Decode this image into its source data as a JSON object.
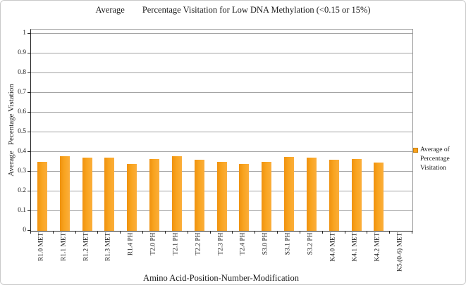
{
  "figure": {
    "title": "Average        Percentage Visitation for Low DNA Methylation (<0.15 or 15%)",
    "x_axis_title": "Amino Acid-Position-Number-Modification",
    "y_axis_title": "Average   Pecentage Vistation"
  },
  "legend": {
    "lines": [
      "Average of",
      "Percentage",
      "Visitation"
    ],
    "swatch_color": "#F9A01B"
  },
  "chart_data": {
    "type": "bar",
    "title": "Average Percentage Visitation for Low DNA Methylation (<0.15 or 15%)",
    "xlabel": "Amino Acid-Position-Number-Modification",
    "ylabel": "Average Pecentage Vistation",
    "categories": [
      "R1.0 MET",
      "R1.1 MET",
      "R1.2 MET",
      "R1.3 MET",
      "R1.4 PH",
      "T2.0 PH",
      "T2.1 PH",
      "T2.2 PH",
      "T2.3 PH",
      "T2.4 PH",
      "S3.0 PH",
      "S3.1 PH",
      "S3.2 PH",
      "K4.0 MET",
      "K4.1 MET",
      "K4.2 MET",
      "K5.(0-6) MET"
    ],
    "values": [
      0.35,
      0.38,
      0.37,
      0.37,
      0.34,
      0.365,
      0.38,
      0.36,
      0.35,
      0.34,
      0.35,
      0.375,
      0.37,
      0.36,
      0.365,
      0.345,
      0
    ],
    "ylim": [
      0,
      1
    ],
    "yticks": [
      "0",
      "0.1",
      "0.2",
      "0.3",
      "0.4",
      "0.5",
      "0.6",
      "0.7",
      "0.8",
      "0.9",
      "1"
    ],
    "ytick_interval": 0.1,
    "grid": true,
    "legend": [
      "Average of Percentage Visitation"
    ],
    "legend_position": "right",
    "bar_color": "#F9A01B"
  }
}
